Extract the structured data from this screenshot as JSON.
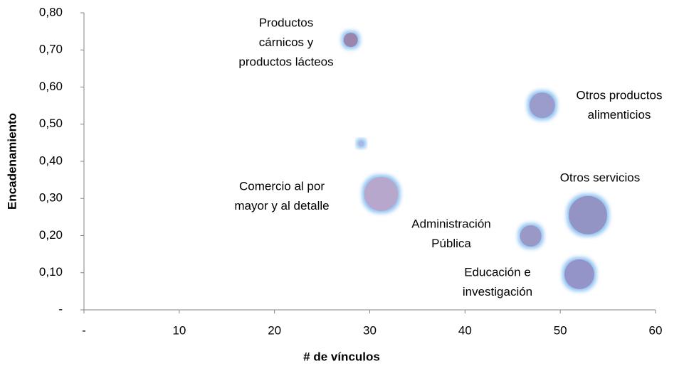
{
  "chart_data": {
    "type": "bubble",
    "xlabel": "# de vínculos",
    "ylabel": "Encadenamiento",
    "x": [
      28,
      48.1,
      29.1,
      31.2,
      52.9,
      46.9,
      52.0
    ],
    "values": [
      0.727,
      0.551,
      0.448,
      0.312,
      0.255,
      0.199,
      0.096
    ],
    "sizes": [
      100,
      324,
      16,
      576,
      729,
      225,
      441
    ],
    "colors": [
      "#9a86ad",
      "#9a9ccc",
      "#a8b8e0",
      "#b7a7cc",
      "#9494c4",
      "#9a98c4",
      "#9494c8"
    ],
    "labels": [
      [
        "Productos",
        "cárnicos y",
        "productos lácteos"
      ],
      [
        "Otros productos",
        "alimenticios"
      ],
      null,
      [
        "Comercio al por",
        "mayor y al detalle"
      ],
      [
        "Otros servicios"
      ],
      [
        "Administración",
        "Pública"
      ],
      [
        "Educación e",
        "investigación"
      ]
    ],
    "xlim": [
      0,
      60
    ],
    "xticks": [
      {
        "value": 0,
        "label": "-"
      },
      10,
      20,
      30,
      40,
      50,
      60
    ],
    "ylim": [
      0,
      0.8
    ],
    "yticks": [
      {
        "value": 0,
        "label": "-"
      },
      {
        "value": 0.1,
        "label": "0,10"
      },
      {
        "value": 0.2,
        "label": "0,20"
      },
      {
        "value": 0.3,
        "label": "0,30"
      },
      {
        "value": 0.4,
        "label": "0,40"
      },
      {
        "value": 0.5,
        "label": "0,50"
      },
      {
        "value": 0.6,
        "label": "0,60"
      },
      {
        "value": 0.7,
        "label": "0,70"
      },
      {
        "value": 0.8,
        "label": "0,80"
      }
    ]
  }
}
